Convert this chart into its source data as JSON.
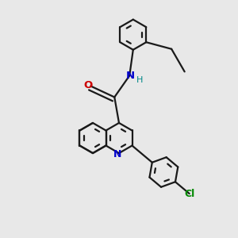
{
  "background_color": "#e8e8e8",
  "bond_color": "#1a1a1a",
  "N_color": "#0000cc",
  "O_color": "#cc0000",
  "Cl_color": "#008800",
  "NH_color": "#008888",
  "line_width": 1.6,
  "dpi": 100,
  "figsize": [
    3.0,
    3.0
  ],
  "xlim": [
    0,
    10
  ],
  "ylim": [
    0,
    10
  ]
}
